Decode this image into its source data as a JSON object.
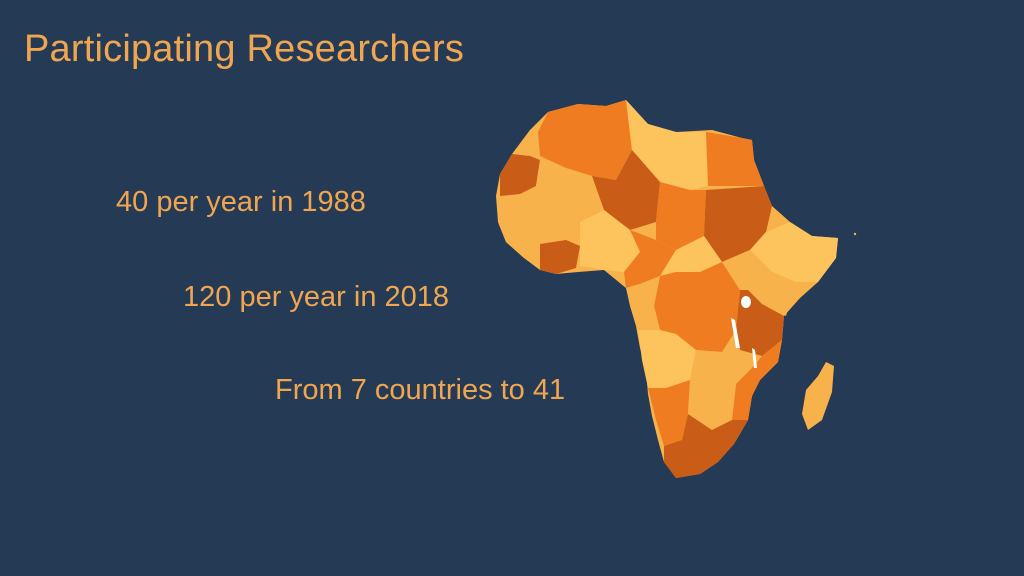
{
  "slide": {
    "title": "Participating Researchers",
    "points": [
      "40 per year in 1988",
      "120 per year in 2018",
      "From 7 countries to 41"
    ]
  },
  "map": {
    "icon": "africa-map-illustration",
    "colors": {
      "light": "#f8b24c",
      "mid": "#f07c22",
      "dark": "#c95c17",
      "pale": "#fdc35c",
      "water": "#ffffff"
    }
  }
}
